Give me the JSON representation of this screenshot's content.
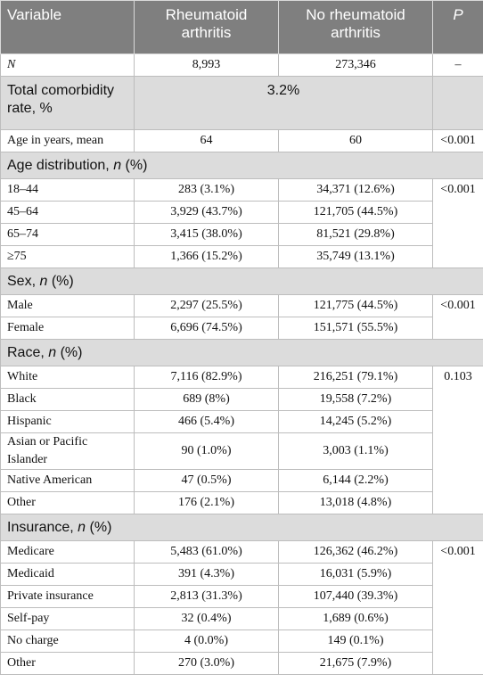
{
  "table": {
    "header": [
      "Variable",
      "Rheumatoid arthritis",
      "No rheumatoid arthritis",
      "P"
    ],
    "n_row": [
      "N",
      "8,993",
      "273,346",
      "–"
    ],
    "comorbidity": {
      "label": "Total comorbidity rate, %",
      "value": "3.2%"
    },
    "age_mean": [
      "Age in years, mean",
      "64",
      "60",
      "<0.001"
    ],
    "sections": [
      {
        "title": [
          "Age distribution, ",
          "n",
          " (%)"
        ],
        "p": "<0.001",
        "rows": [
          [
            "18–44",
            "283 (3.1%)",
            "34,371 (12.6%)"
          ],
          [
            "45–64",
            "3,929 (43.7%)",
            "121,705 (44.5%)"
          ],
          [
            "65–74",
            "3,415 (38.0%)",
            "81,521 (29.8%)"
          ],
          [
            "≥75",
            "1,366 (15.2%)",
            "35,749 (13.1%)"
          ]
        ]
      },
      {
        "title": [
          "Sex, ",
          "n",
          " (%)"
        ],
        "p": "<0.001",
        "rows": [
          [
            "Male",
            "2,297 (25.5%)",
            "121,775 (44.5%)"
          ],
          [
            "Female",
            "6,696 (74.5%)",
            "151,571 (55.5%)"
          ]
        ]
      },
      {
        "title": [
          "Race, ",
          "n",
          " (%)"
        ],
        "p": "0.103",
        "rows": [
          [
            "White",
            "7,116 (82.9%)",
            "216,251 (79.1%)"
          ],
          [
            "Black",
            "689 (8%)",
            "19,558 (7.2%)"
          ],
          [
            "Hispanic",
            "466 (5.4%)",
            "14,245 (5.2%)"
          ],
          [
            "Asian or Pacific Islander",
            "90 (1.0%)",
            "3,003 (1.1%)"
          ],
          [
            "Native American",
            "47 (0.5%)",
            "6,144 (2.2%)"
          ],
          [
            "Other",
            "176 (2.1%)",
            "13,018 (4.8%)"
          ]
        ]
      },
      {
        "title": [
          "Insurance, ",
          "n",
          " (%)"
        ],
        "p": "<0.001",
        "rows": [
          [
            "Medicare",
            "5,483 (61.0%)",
            "126,362 (46.2%)"
          ],
          [
            "Medicaid",
            "391 (4.3%)",
            "16,031 (5.9%)"
          ],
          [
            "Private insurance",
            "2,813 (31.3%)",
            "107,440 (39.3%)"
          ],
          [
            "Self-pay",
            "32 (0.4%)",
            "1,689 (0.6%)"
          ],
          [
            "No charge",
            "4 (0.0%)",
            "149 (0.1%)"
          ],
          [
            "Other",
            "270 (3.0%)",
            "21,675 (7.9%)"
          ]
        ]
      }
    ]
  }
}
